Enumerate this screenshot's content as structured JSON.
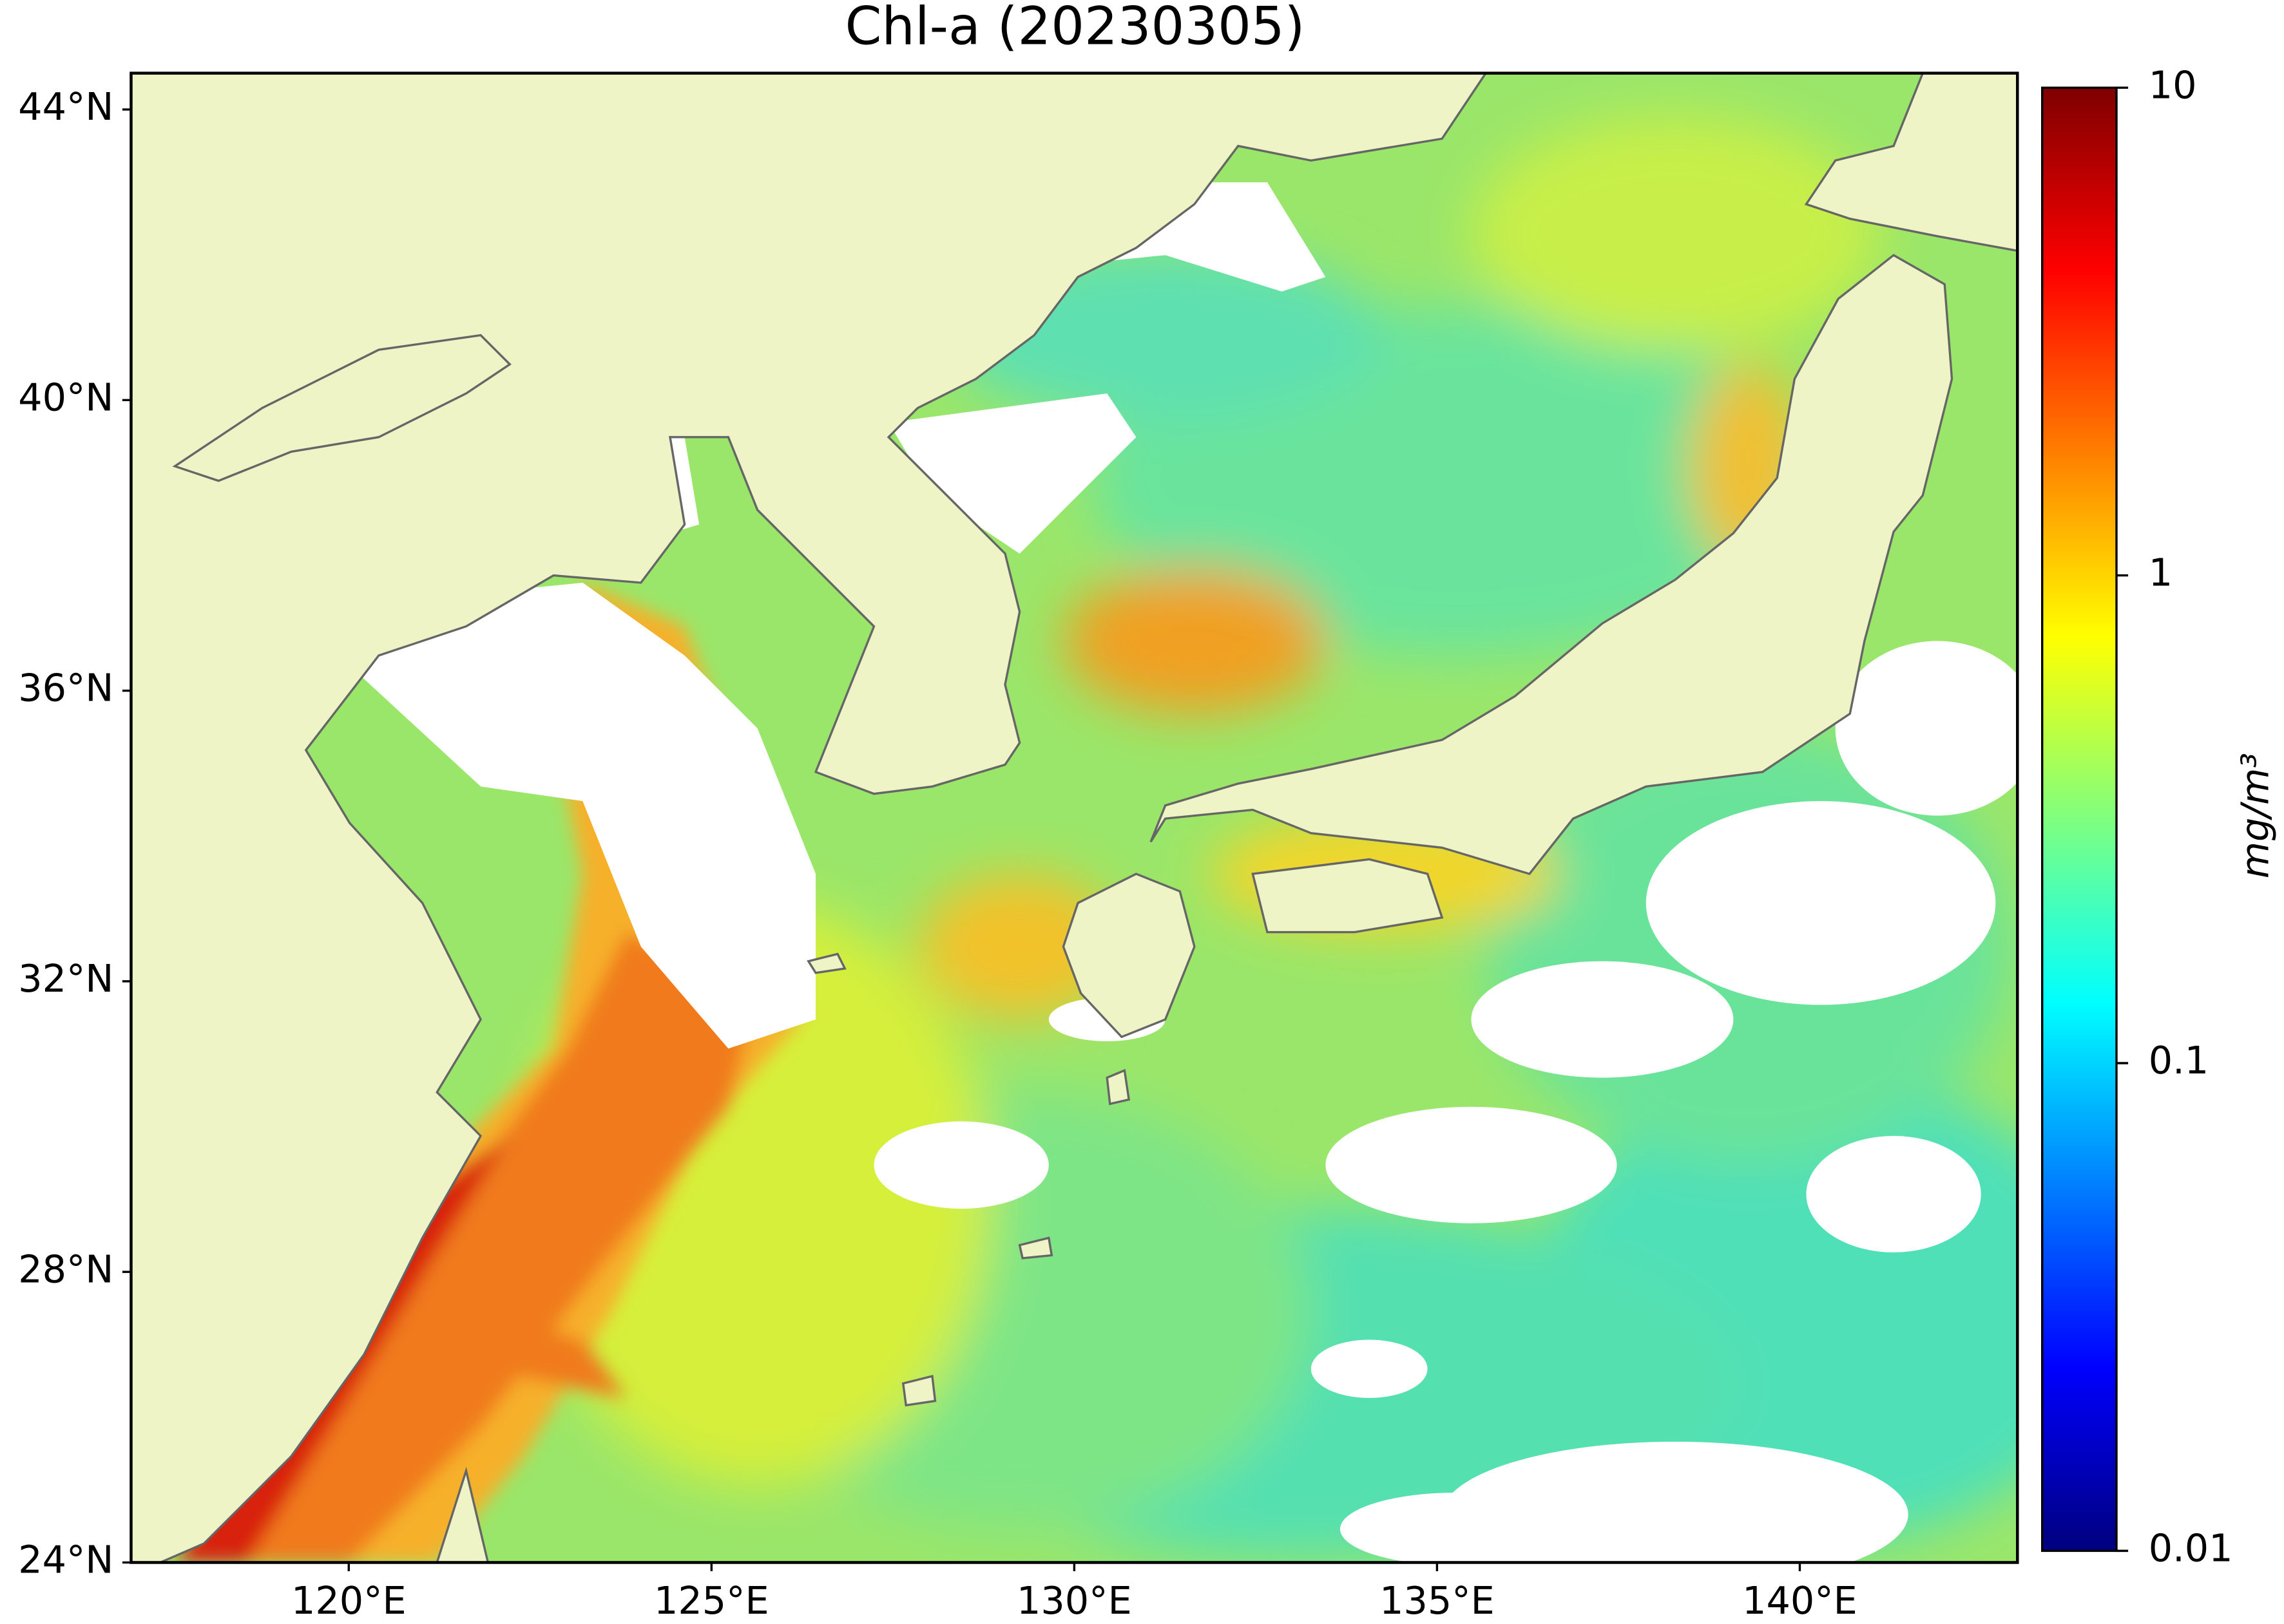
{
  "chart_data": {
    "type": "map",
    "title": "Chl-a (20230305)",
    "xlim": [
      117,
      143
    ],
    "ylim": [
      24,
      44.5
    ],
    "xticks": [
      {
        "value": 120,
        "label": "120°E"
      },
      {
        "value": 125,
        "label": "125°E"
      },
      {
        "value": 130,
        "label": "130°E"
      },
      {
        "value": 135,
        "label": "135°E"
      },
      {
        "value": 140,
        "label": "140°E"
      }
    ],
    "yticks": [
      {
        "value": 24,
        "label": "24°N"
      },
      {
        "value": 28,
        "label": "28°N"
      },
      {
        "value": 32,
        "label": "32°N"
      },
      {
        "value": 36,
        "label": "36°N"
      },
      {
        "value": 40,
        "label": "40°N"
      },
      {
        "value": 44,
        "label": "44°N"
      }
    ],
    "colorbar": {
      "label": "mg/m³",
      "lim": [
        0.01,
        10
      ],
      "ticks": [
        0.01,
        0.1,
        1,
        10
      ],
      "log_scale": true,
      "colormap": "jet"
    }
  }
}
